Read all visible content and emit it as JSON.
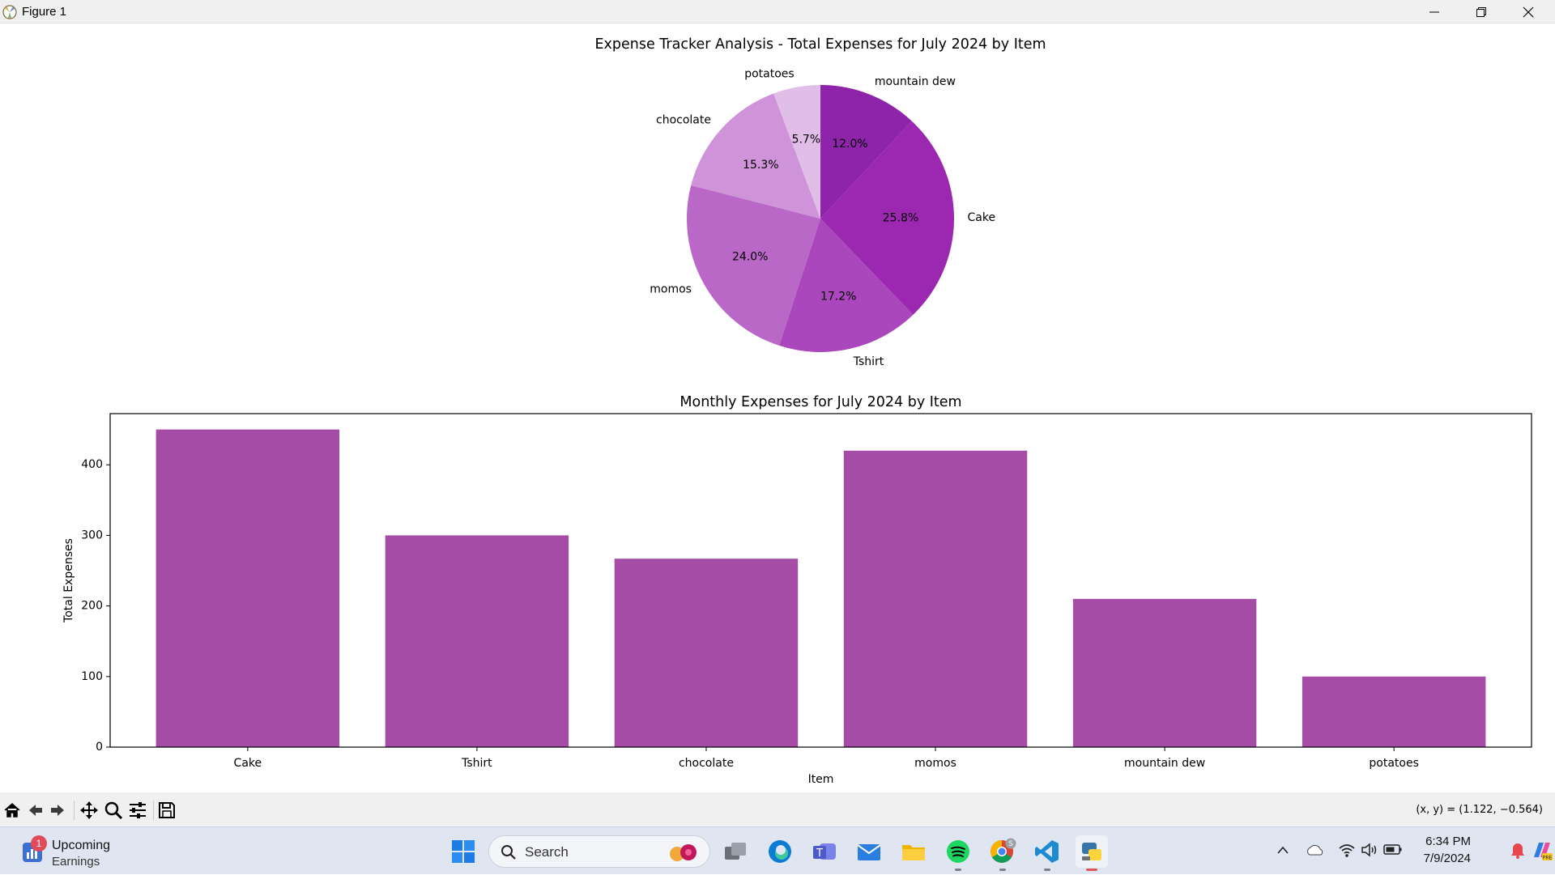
{
  "window": {
    "title": "Figure 1",
    "controls": {
      "minimize": "minimize-icon",
      "maximize": "restore-icon",
      "close": "close-icon"
    }
  },
  "figure": {
    "suptitle": "Expense Tracker Analysis - Total Expenses for July 2024 by Item"
  },
  "chart_data": [
    {
      "type": "pie",
      "title": "Expense Tracker Analysis - Total Expenses for July 2024 by Item",
      "labels": [
        "mountain dew",
        "Cake",
        "Tshirt",
        "momos",
        "chocolate",
        "potatoes"
      ],
      "values": [
        12.0,
        25.8,
        17.2,
        24.0,
        15.3,
        5.7
      ],
      "value_labels": [
        "12.0%",
        "25.8%",
        "17.2%",
        "24.0%",
        "15.3%",
        "5.7%"
      ],
      "colors": [
        "#8e24aa",
        "#9c27b0",
        "#ab47bc",
        "#ba68c8",
        "#ce93d8",
        "#e1bee7"
      ],
      "start_angle_deg": 90,
      "direction": "clockwise"
    },
    {
      "type": "bar",
      "title": "Monthly Expenses for July 2024 by Item",
      "categories": [
        "Cake",
        "Tshirt",
        "chocolate",
        "momos",
        "mountain dew",
        "potatoes"
      ],
      "values": [
        450,
        300,
        267,
        420,
        210,
        100
      ],
      "xlabel": "Item",
      "ylabel": "Total Expenses",
      "ylim": [
        0,
        472.5
      ],
      "yticks": [
        0,
        100,
        200,
        300,
        400
      ],
      "bar_color": "#a54ca6",
      "grid": false
    }
  ],
  "toolbar": {
    "buttons": [
      "home-icon",
      "back-icon",
      "forward-icon",
      "pan-icon",
      "zoom-icon",
      "configure-subplots-icon",
      "save-icon"
    ],
    "coords": "(x, y) = (1.122, −0.564)"
  },
  "taskbar": {
    "widget": {
      "badge": "1",
      "line1": "Upcoming",
      "line2": "Earnings"
    },
    "search": {
      "placeholder": "Search"
    },
    "apps": [
      "start-icon",
      "task-view-icon",
      "edge-icon",
      "teams-icon",
      "mail-icon",
      "file-explorer-icon",
      "spotify-icon",
      "chrome-icon",
      "vscode-icon",
      "python-icon"
    ],
    "chrome_badge": "S",
    "clock": {
      "time": "6:34 PM",
      "date": "7/9/2024"
    },
    "tray": [
      "show-hidden-icons-icon",
      "onedrive-icon",
      "wifi-icon",
      "volume-icon",
      "battery-icon",
      "notification-bell-icon",
      "copilot-icon"
    ]
  }
}
